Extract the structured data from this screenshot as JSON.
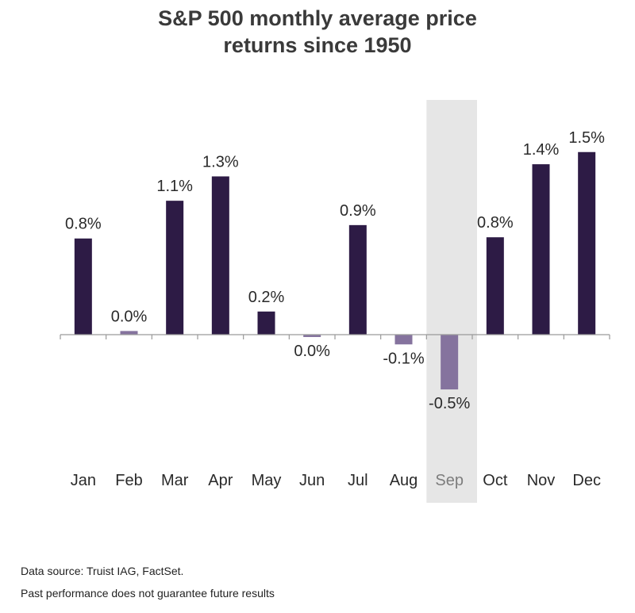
{
  "chart_data": {
    "type": "bar",
    "title_lines": [
      "S&P 500 monthly average price",
      "returns since 1950"
    ],
    "categories": [
      "Jan",
      "Feb",
      "Mar",
      "Apr",
      "May",
      "Jun",
      "Jul",
      "Aug",
      "Sep",
      "Oct",
      "Nov",
      "Dec"
    ],
    "values": [
      0.79,
      0.03,
      1.1,
      1.3,
      0.19,
      -0.01,
      0.9,
      -0.08,
      -0.45,
      0.8,
      1.4,
      1.5
    ],
    "data_labels": [
      "0.8%",
      "0.0%",
      "1.1%",
      "1.3%",
      "0.2%",
      "0.0%",
      "0.9%",
      "-0.1%",
      "-0.5%",
      "0.8%",
      "1.4%",
      "1.5%"
    ],
    "highlighted_category": "Sep",
    "ylim": [
      -1.0,
      1.9
    ],
    "xlabel": "",
    "ylabel": "",
    "grid": false,
    "colors": {
      "positive_bar": "#2d1b45",
      "negative_bar": "#85739e",
      "near_zero_bar": "#85739e",
      "highlight_band": "#e6e6e6",
      "axis": "#9a9a9a",
      "text": "#2a2a2a",
      "highlight_text": "#7d7d7d"
    }
  },
  "footer": {
    "source": "Data source: Truist IAG, FactSet.",
    "disclaimer": "Past performance does not guarantee future results"
  }
}
